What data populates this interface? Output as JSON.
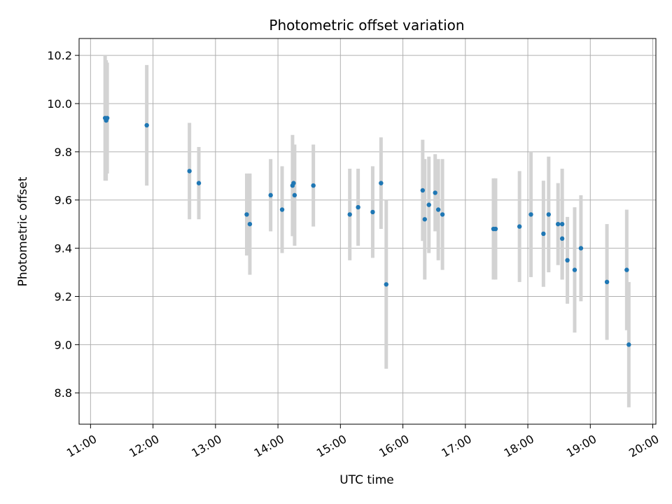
{
  "chart_data": {
    "type": "scatter",
    "title": "Photometric offset variation",
    "xlabel": "UTC time",
    "ylabel": "Photometric offset",
    "xlim": [
      "10:49",
      "20:03"
    ],
    "ylim": [
      8.67,
      10.27
    ],
    "x_ticks": [
      "11:00",
      "12:00",
      "13:00",
      "14:00",
      "15:00",
      "16:00",
      "17:00",
      "18:00",
      "19:00",
      "20:00"
    ],
    "y_ticks": [
      8.8,
      9.0,
      9.2,
      9.4,
      9.6,
      9.8,
      10.0,
      10.2
    ],
    "grid": true,
    "colors": {
      "point": "#1f77b4",
      "errorbar": "#d3d3d3",
      "grid": "#b0b0b0"
    },
    "series": [
      {
        "points": [
          {
            "t": "11:14",
            "y": 9.94,
            "err": 0.26
          },
          {
            "t": "11:15",
            "y": 9.93,
            "err": 0.25
          },
          {
            "t": "11:16",
            "y": 9.94,
            "err": 0.23
          },
          {
            "t": "11:54",
            "y": 9.91,
            "err": 0.25
          },
          {
            "t": "12:35",
            "y": 9.72,
            "err": 0.2
          },
          {
            "t": "12:44",
            "y": 9.67,
            "err": 0.15
          },
          {
            "t": "13:30",
            "y": 9.54,
            "err": 0.17
          },
          {
            "t": "13:33",
            "y": 9.5,
            "err": 0.21
          },
          {
            "t": "13:53",
            "y": 9.62,
            "err": 0.15
          },
          {
            "t": "14:04",
            "y": 9.56,
            "err": 0.18
          },
          {
            "t": "14:14",
            "y": 9.66,
            "err": 0.21
          },
          {
            "t": "14:15",
            "y": 9.67,
            "err": 0.16
          },
          {
            "t": "14:16",
            "y": 9.62,
            "err": 0.21
          },
          {
            "t": "14:34",
            "y": 9.66,
            "err": 0.17
          },
          {
            "t": "15:09",
            "y": 9.54,
            "err": 0.19
          },
          {
            "t": "15:17",
            "y": 9.57,
            "err": 0.16
          },
          {
            "t": "15:31",
            "y": 9.55,
            "err": 0.19
          },
          {
            "t": "15:39",
            "y": 9.67,
            "err": 0.19
          },
          {
            "t": "15:44",
            "y": 9.25,
            "err": 0.35
          },
          {
            "t": "16:19",
            "y": 9.64,
            "err": 0.21
          },
          {
            "t": "16:21",
            "y": 9.52,
            "err": 0.25
          },
          {
            "t": "16:25",
            "y": 9.58,
            "err": 0.2
          },
          {
            "t": "16:31",
            "y": 9.63,
            "err": 0.16
          },
          {
            "t": "16:34",
            "y": 9.56,
            "err": 0.21
          },
          {
            "t": "16:38",
            "y": 9.54,
            "err": 0.23
          },
          {
            "t": "17:27",
            "y": 9.48,
            "err": 0.21
          },
          {
            "t": "17:29",
            "y": 9.48,
            "err": 0.21
          },
          {
            "t": "17:52",
            "y": 9.49,
            "err": 0.23
          },
          {
            "t": "18:03",
            "y": 9.54,
            "err": 0.26
          },
          {
            "t": "18:15",
            "y": 9.46,
            "err": 0.22
          },
          {
            "t": "18:20",
            "y": 9.54,
            "err": 0.24
          },
          {
            "t": "18:29",
            "y": 9.5,
            "err": 0.17
          },
          {
            "t": "18:33",
            "y": 9.5,
            "err": 0.23
          },
          {
            "t": "18:33",
            "y": 9.44,
            "err": 0.17
          },
          {
            "t": "18:38",
            "y": 9.35,
            "err": 0.18
          },
          {
            "t": "18:45",
            "y": 9.31,
            "err": 0.26
          },
          {
            "t": "18:51",
            "y": 9.4,
            "err": 0.22
          },
          {
            "t": "19:16",
            "y": 9.26,
            "err": 0.24
          },
          {
            "t": "19:35",
            "y": 9.31,
            "err": 0.25
          },
          {
            "t": "19:37",
            "y": 9.0,
            "err": 0.26
          }
        ]
      }
    ]
  }
}
